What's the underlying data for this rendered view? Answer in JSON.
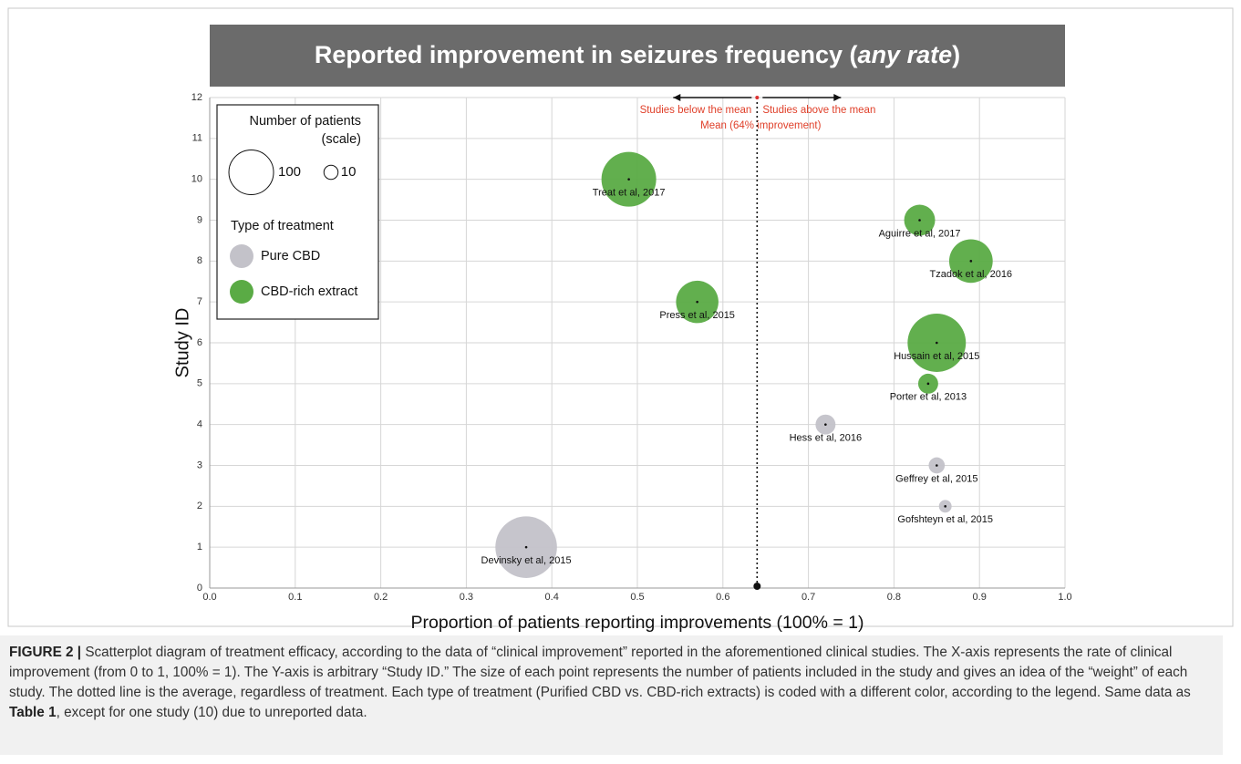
{
  "chart_data": {
    "type": "scatter",
    "title": [
      "Reported improvement in seizures frequency (",
      "any rate",
      ")"
    ],
    "xlabel": "Proportion of patients reporting improvements (100% = 1)",
    "ylabel": "Study ID",
    "xlim": [
      0,
      1
    ],
    "ylim": [
      0,
      12
    ],
    "xticks": [
      {
        "value": 0,
        "label": "0.0"
      },
      0.1,
      0.2,
      0.3,
      0.4,
      0.5,
      0.6,
      0.7,
      0.8,
      0.9,
      {
        "value": 1,
        "label": "1.0"
      }
    ],
    "yticks": [
      0,
      1,
      2,
      3,
      4,
      5,
      6,
      7,
      8,
      9,
      10,
      11,
      12
    ],
    "grid": true,
    "legend": {
      "corner": "upper left",
      "size_title": [
        "Number of patients",
        "(scale)"
      ],
      "size_values": [
        100,
        10
      ],
      "type_title": "Type of treatment"
    },
    "mean": {
      "value": 0.64,
      "label": "Mean (64% improvement)",
      "below": "Studies below the mean",
      "above": "Studies above the mean"
    },
    "series": [
      {
        "name": "Pure CBD",
        "color": "#c3c2c9",
        "x": [
          0.37,
          0.86,
          0.85,
          0.72
        ],
        "y": [
          1,
          2,
          3,
          4
        ],
        "sizes": [
          190,
          8,
          13,
          20
        ],
        "labels": [
          "Devinsky et al, 2015",
          "Gofshteyn et al, 2015",
          "Geffrey et al, 2015",
          "Hess et al, 2016"
        ]
      },
      {
        "name": "CBD-rich extract",
        "color": "#5aab45",
        "x": [
          0.84,
          0.85,
          0.57,
          0.89,
          0.83,
          0.49
        ],
        "y": [
          5,
          6,
          7,
          8,
          9,
          10
        ],
        "sizes": [
          20,
          170,
          90,
          95,
          48,
          150
        ],
        "labels": [
          "Porter et al, 2013",
          "Hussain et al, 2015",
          "Press et al, 2015",
          "Tzadok et al, 2016",
          "Aguirre et al, 2017",
          "Treat et al, 2017"
        ]
      }
    ]
  },
  "caption": {
    "label": "FIGURE 2 |",
    "text": " Scatterplot diagram of treatment efficacy, according to the data of “clinical improvement” reported in the aforementioned clinical studies. The X-axis represents the rate of clinical improvement (from 0 to 1, 100% = 1). The Y-axis is arbitrary “Study ID.” The size of each point represents the number of patients included in the study and gives an idea of the “weight” of each study. The dotted line is the average, regardless of treatment. Each type of treatment (Purified CBD vs. CBD-rich extracts) is coded with a different color, according to the legend. Same data as ",
    "ref": "Table 1",
    "rest": ", except for one study (10) due to unreported data."
  }
}
